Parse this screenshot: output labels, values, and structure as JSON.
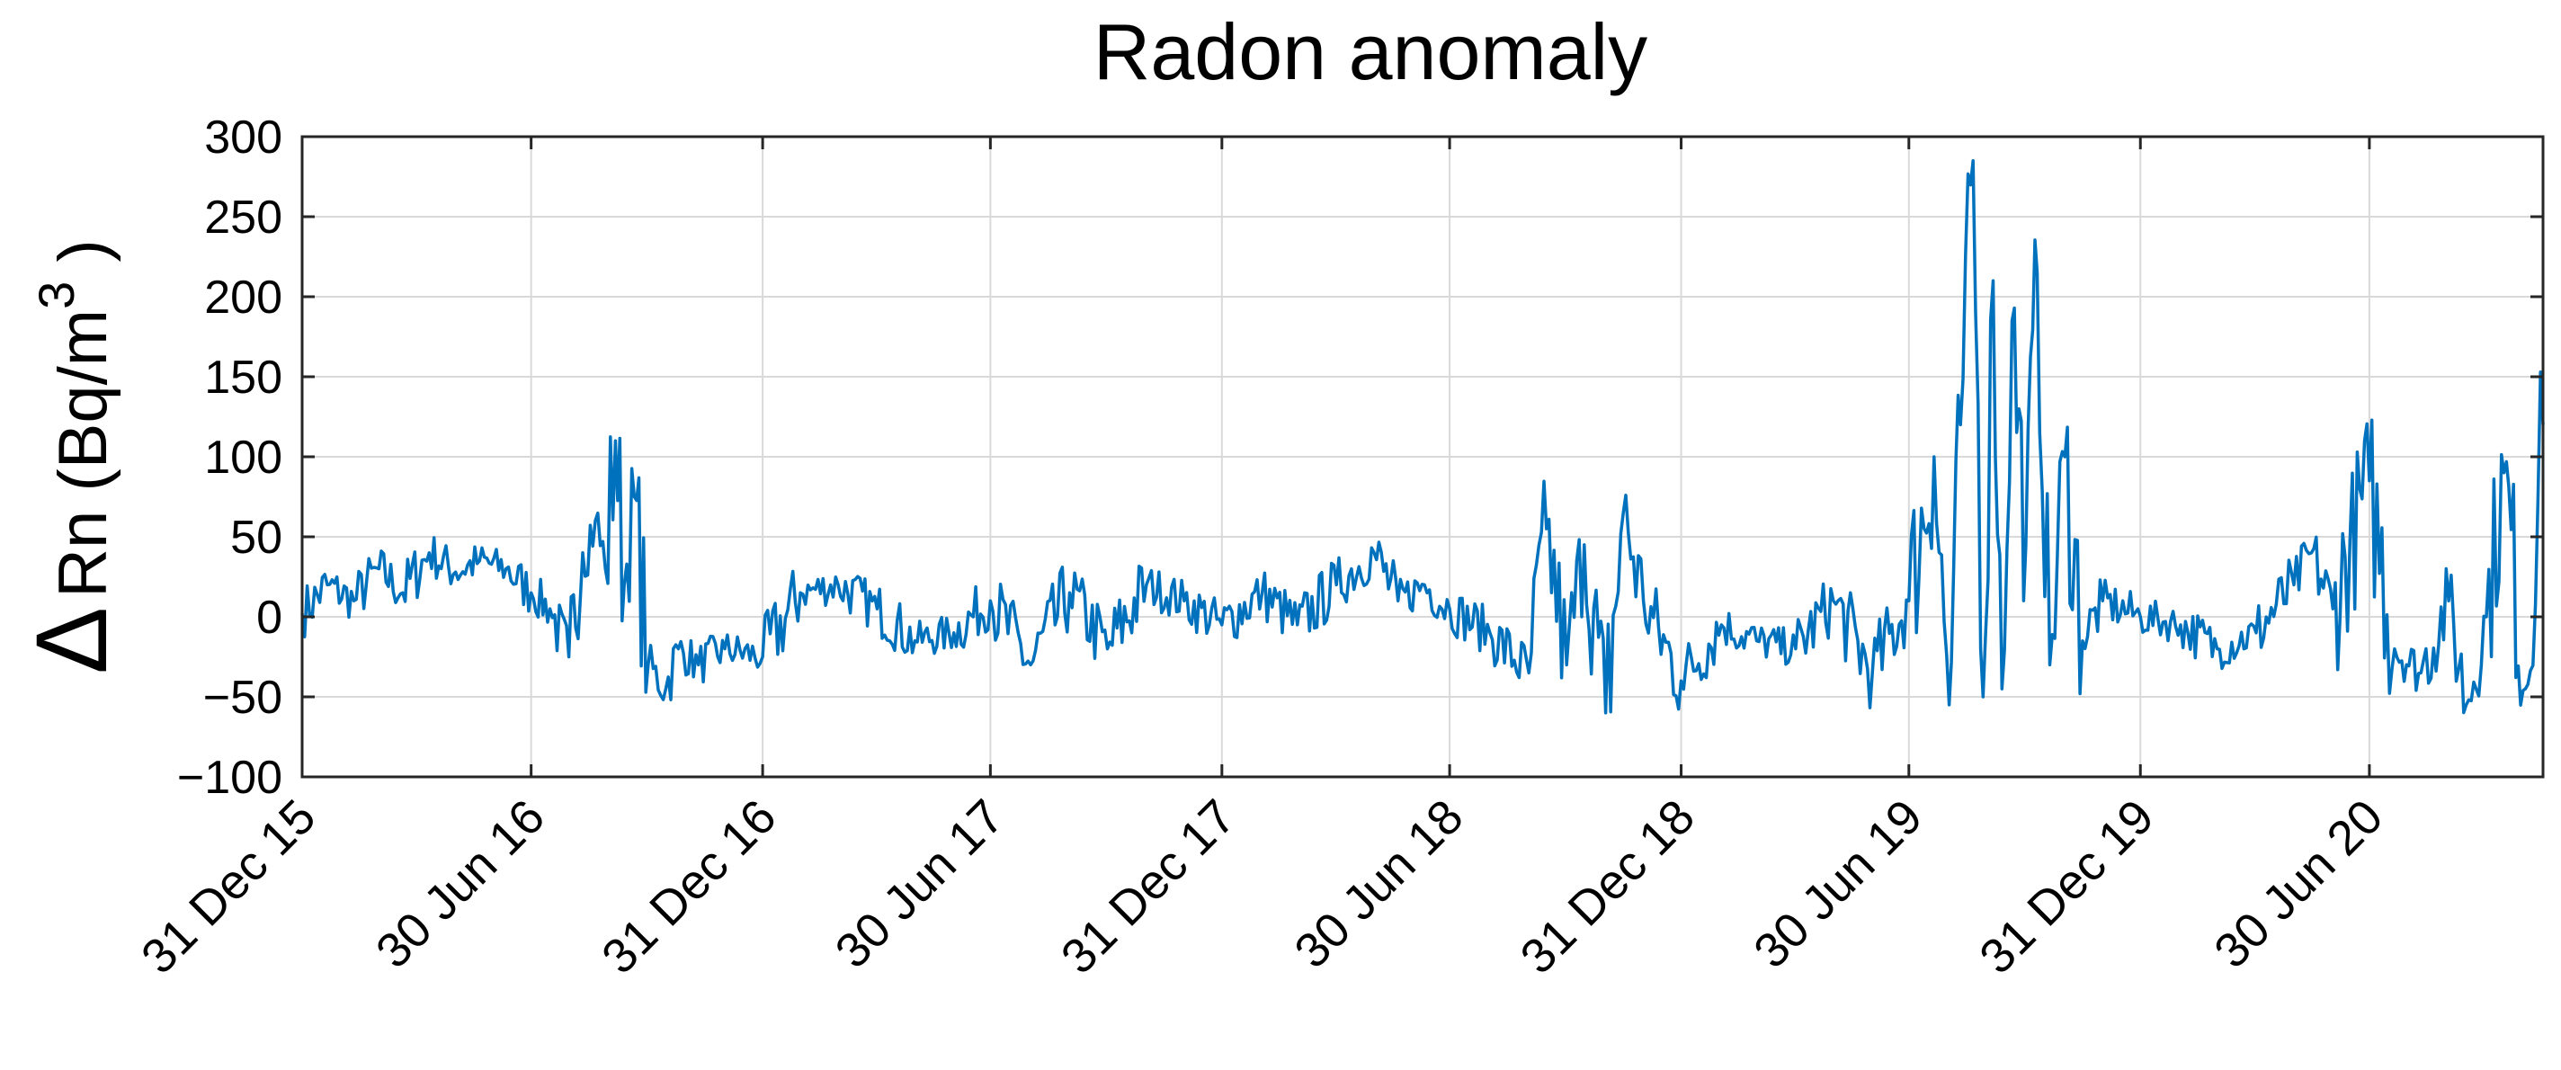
{
  "chart_data": {
    "type": "line",
    "title": "Radon anomaly",
    "xlabel": "",
    "ylabel": {
      "symbol": "Δ",
      "text": "Rn (Bq/m",
      "superscript": "3",
      "suffix": " )"
    },
    "ylim": [
      -100,
      300
    ],
    "yticks": [
      -100,
      -50,
      0,
      50,
      100,
      150,
      200,
      250,
      300
    ],
    "ytick_labels": [
      "−100",
      "−50",
      "0",
      "50",
      "100",
      "150",
      "200",
      "250",
      "300"
    ],
    "xlim": [
      "2015-12-31",
      "2020-11-15"
    ],
    "xticks": [
      "2015-12-31",
      "2016-06-30",
      "2016-12-31",
      "2017-06-30",
      "2017-12-31",
      "2018-06-30",
      "2018-12-31",
      "2019-06-30",
      "2019-12-31",
      "2020-06-30"
    ],
    "xtick_labels": [
      "31 Dec 15",
      "30 Jun 16",
      "31 Dec 16",
      "30 Jun 17",
      "31 Dec 17",
      "30 Jun 18",
      "31 Dec 18",
      "30 Jun 19",
      "31 Dec 19",
      "30 Jun 20"
    ],
    "grid": true,
    "line_color": "#0072BD",
    "series": [
      {
        "x": [
          "2015-12-31",
          "2016-01-20",
          "2016-02-10",
          "2016-03-01",
          "2016-03-20",
          "2016-04-10",
          "2016-05-01",
          "2016-05-20",
          "2016-06-10",
          "2016-06-30",
          "2016-07-15",
          "2016-07-30",
          "2016-08-10",
          "2016-08-20",
          "2016-08-28",
          "2016-09-05",
          "2016-09-12",
          "2016-09-20",
          "2016-10-01",
          "2016-10-15",
          "2016-10-25",
          "2016-11-10",
          "2016-12-01",
          "2016-12-31",
          "2017-01-30",
          "2017-03-01",
          "2017-04-01",
          "2017-05-01",
          "2017-06-01",
          "2017-06-30",
          "2017-08-01",
          "2017-09-01",
          "2017-10-01",
          "2017-11-01",
          "2017-12-01",
          "2017-12-31",
          "2018-02-01",
          "2018-03-01",
          "2018-04-01",
          "2018-05-01",
          "2018-05-20",
          "2018-06-10",
          "2018-06-30",
          "2018-08-01",
          "2018-09-01",
          "2018-09-15",
          "2018-10-01",
          "2018-10-15",
          "2018-11-01",
          "2018-11-15",
          "2018-12-01",
          "2018-12-31",
          "2019-02-01",
          "2019-03-01",
          "2019-04-01",
          "2019-05-01",
          "2019-06-01",
          "2019-06-30",
          "2019-07-20",
          "2019-08-01",
          "2019-08-10",
          "2019-08-20",
          "2019-08-28",
          "2019-09-05",
          "2019-09-12",
          "2019-09-20",
          "2019-10-01",
          "2019-10-10",
          "2019-10-20",
          "2019-11-01",
          "2019-11-15",
          "2019-12-01",
          "2019-12-31",
          "2020-02-01",
          "2020-03-01",
          "2020-04-01",
          "2020-05-01",
          "2020-05-15",
          "2020-06-01",
          "2020-06-30",
          "2020-07-20",
          "2020-08-10",
          "2020-09-01",
          "2020-09-15",
          "2020-10-01",
          "2020-10-15",
          "2020-11-01",
          "2020-11-15"
        ],
        "y": [
          2,
          20,
          10,
          30,
          15,
          40,
          28,
          35,
          30,
          15,
          5,
          -25,
          40,
          60,
          30,
          110,
          20,
          75,
          -30,
          -45,
          -20,
          -30,
          -20,
          -25,
          15,
          20,
          5,
          -15,
          -10,
          10,
          -30,
          15,
          -20,
          20,
          10,
          -5,
          15,
          -5,
          20,
          40,
          10,
          20,
          5,
          -10,
          -35,
          55,
          -30,
          45,
          -60,
          65,
          10,
          -40,
          -5,
          -15,
          -20,
          10,
          -35,
          10,
          100,
          -55,
          120,
          285,
          -50,
          210,
          -45,
          185,
          45,
          215,
          -30,
          100,
          -15,
          10,
          0,
          -5,
          -20,
          -10,
          20,
          40,
          5,
          85,
          -20,
          -35,
          10,
          -55,
          0,
          90,
          -45,
          120
        ]
      }
    ]
  }
}
